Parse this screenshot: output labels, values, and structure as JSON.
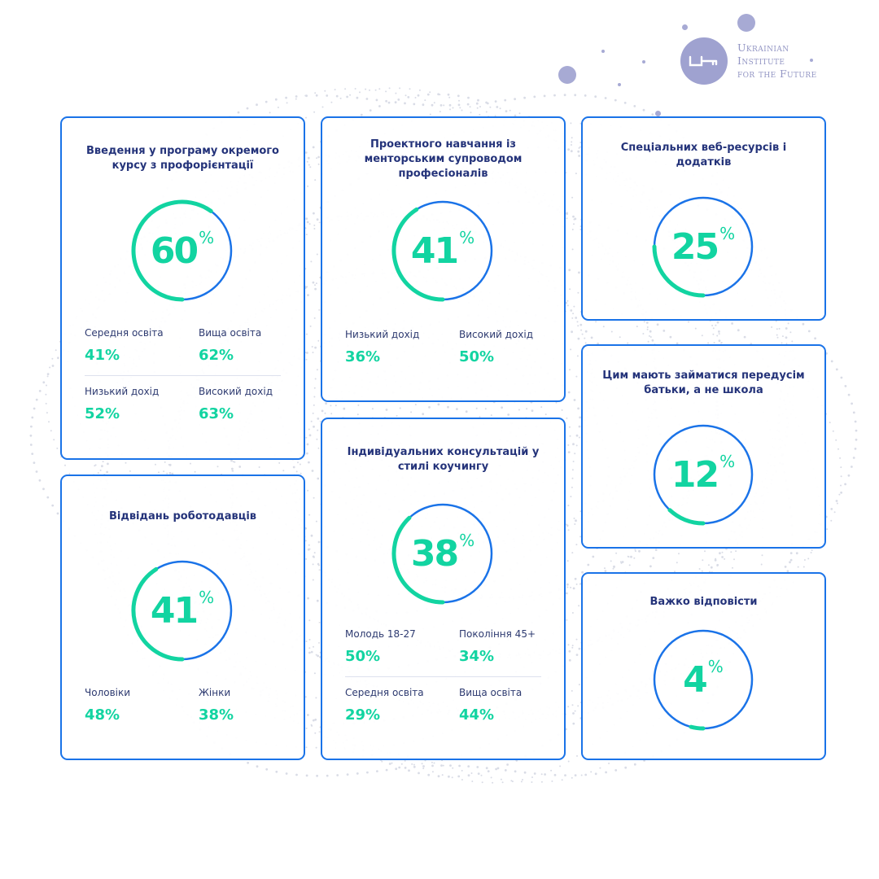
{
  "brand": {
    "lines": [
      "Ukrainian",
      "Institute",
      "for the Future"
    ]
  },
  "colors": {
    "card_border": "#1a73e8",
    "ring_track": "#1a73e8",
    "ring_progress": "#12d4a1",
    "value": "#12d4a1",
    "title": "#24337a",
    "logo": "#9fa2d0"
  },
  "chart_data": [
    {
      "type": "donut",
      "title": "Введення у програму окремого курсу з профорієнтації",
      "value": 60,
      "unit": "%",
      "breakdown": [
        {
          "label": "Середня освіта",
          "value": "41%"
        },
        {
          "label": "Вища освіта",
          "value": "62%"
        },
        {
          "label": "Низький дохід",
          "value": "52%"
        },
        {
          "label": "Високий дохід",
          "value": "63%"
        }
      ]
    },
    {
      "type": "donut",
      "title": "Проектного навчання із менторським супроводом професіоналів",
      "value": 41,
      "unit": "%",
      "breakdown": [
        {
          "label": "Низький дохід",
          "value": "36%"
        },
        {
          "label": "Високий дохід",
          "value": "50%"
        }
      ]
    },
    {
      "type": "donut",
      "title": "Спеціальних веб-ресурсів і додатків",
      "value": 25,
      "unit": "%",
      "breakdown": []
    },
    {
      "type": "donut",
      "title": "Відвідань роботодавців",
      "value": 41,
      "unit": "%",
      "breakdown": [
        {
          "label": "Чоловіки",
          "value": "48%"
        },
        {
          "label": "Жінки",
          "value": "38%"
        }
      ]
    },
    {
      "type": "donut",
      "title": "Індивідуальних консультацій у стилі коучингу",
      "value": 38,
      "unit": "%",
      "breakdown": [
        {
          "label": "Молодь 18-27",
          "value": "50%"
        },
        {
          "label": "Покоління 45+",
          "value": "34%"
        },
        {
          "label": "Середня освіта",
          "value": "29%"
        },
        {
          "label": "Вища освіта",
          "value": "44%"
        }
      ]
    },
    {
      "type": "donut",
      "title": "Цим мають займатися передусім батьки, а не школа",
      "value": 12,
      "unit": "%",
      "breakdown": []
    },
    {
      "type": "donut",
      "title": "Важко відповісти",
      "value": 4,
      "unit": "%",
      "breakdown": []
    }
  ]
}
